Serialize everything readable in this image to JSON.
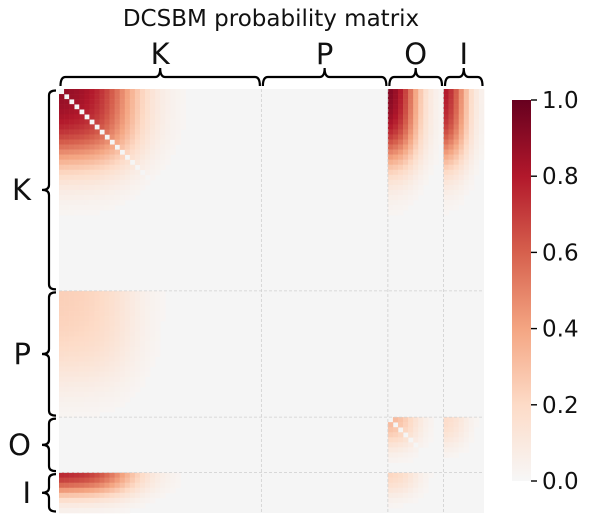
{
  "chart_data": {
    "type": "heatmap",
    "title": "DCSBM probability matrix",
    "blocks": [
      {
        "label": "K",
        "size": 40
      },
      {
        "label": "P",
        "size": 25
      },
      {
        "label": "O",
        "size": 11
      },
      {
        "label": "I",
        "size": 8
      }
    ],
    "block_intensity": [
      [
        0.92,
        0.0,
        1.0,
        0.9
      ],
      [
        0.25,
        0.0,
        0.0,
        0.0
      ],
      [
        0.0,
        0.0,
        0.38,
        0.22
      ],
      [
        0.85,
        0.0,
        0.25,
        0.0
      ]
    ],
    "degree_decay_length": {
      "K": 20,
      "P": 25,
      "O": 7,
      "I": 5
    },
    "diagonal_zero": true,
    "colorbar": {
      "min": 0.0,
      "max": 1.0,
      "ticks": [
        "0.0",
        "0.2",
        "0.4",
        "0.6",
        "0.8",
        "1.0"
      ],
      "colormap": "RdBu_r (upper half)",
      "colors": [
        "#f7f7f7",
        "#fddbc7",
        "#f4a582",
        "#d6604d",
        "#b2182b",
        "#67001f"
      ]
    },
    "grid": true,
    "background": "#f5f5f5"
  }
}
